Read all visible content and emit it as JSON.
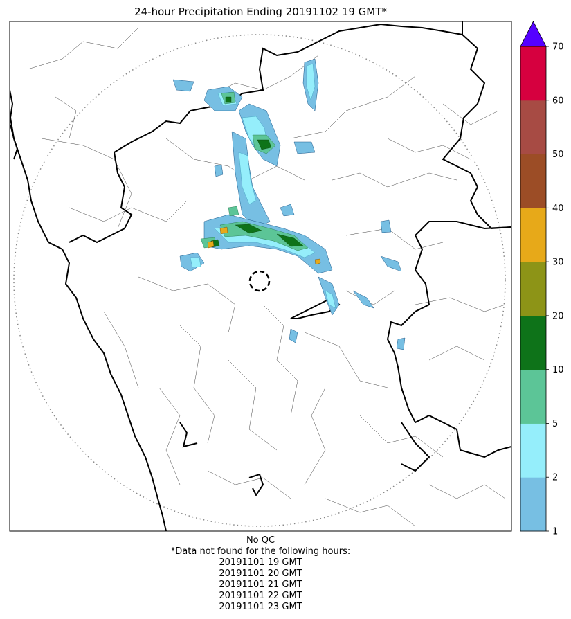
{
  "title": "24-hour Precipitation Ending 20191102 19 GMT*",
  "colorbar": {
    "levels": [
      1,
      2,
      5,
      10,
      20,
      30,
      40,
      50,
      60,
      70
    ],
    "tick_labels": [
      "1",
      "2",
      "5",
      "10",
      "20",
      "30",
      "40",
      "50",
      "60",
      "70"
    ],
    "colors": [
      "#77bfe3",
      "#95eefb",
      "#5cc597",
      "#0e7319",
      "#8d9417",
      "#e7a919",
      "#9c4d26",
      "#a74b44",
      "#d6003f"
    ],
    "extend_color": "#5500ff"
  },
  "footer": {
    "qc_note": "No QC",
    "missing_note": "*Data not found for the following hours:",
    "missing_hours": [
      "20191101 19 GMT",
      "20191101 20 GMT",
      "20191101 21 GMT",
      "20191101 22 GMT",
      "20191101 23 GMT"
    ]
  }
}
